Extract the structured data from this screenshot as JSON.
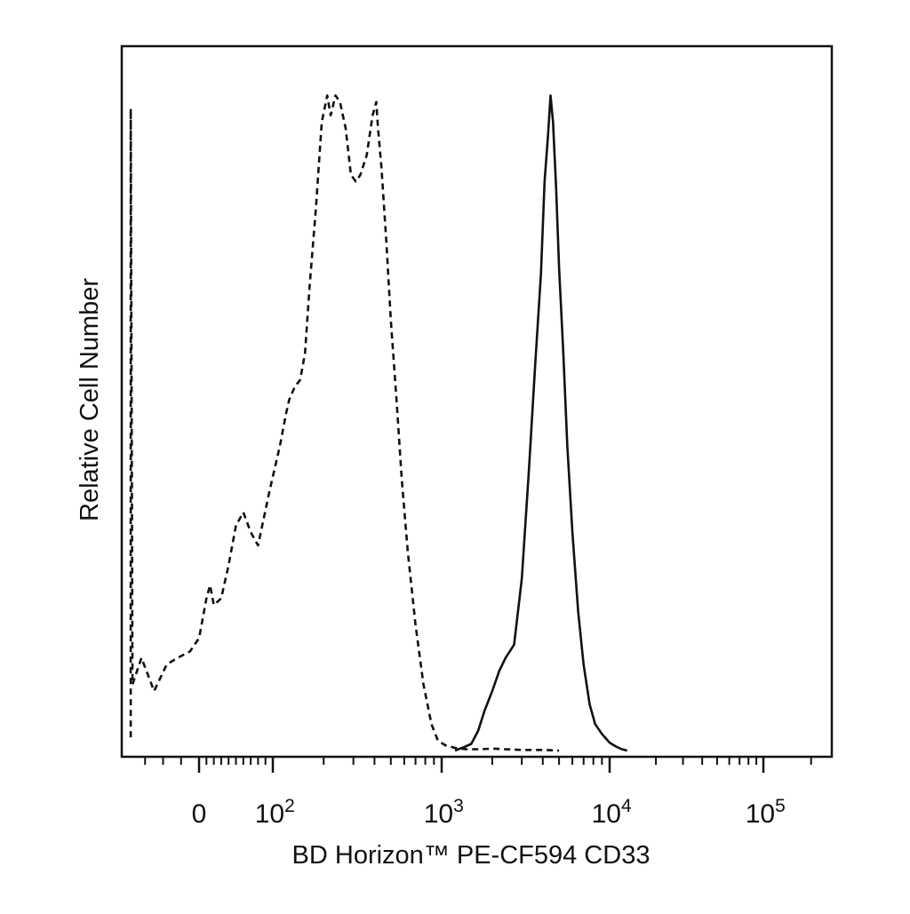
{
  "chart_data": {
    "type": "line",
    "title": "",
    "xlabel": "BD Horizon™ PE-CF594 CD33",
    "ylabel": "Relative Cell Number",
    "x_scale": "biexponential",
    "xlim": [
      -40,
      250000
    ],
    "ylim": [
      0,
      100
    ],
    "grid": false,
    "legend": "none",
    "x_ticks": [
      {
        "value": 0,
        "label": "0"
      },
      {
        "value": 100,
        "label": "10",
        "sup": "2"
      },
      {
        "value": 1000,
        "label": "10",
        "sup": "3"
      },
      {
        "value": 10000,
        "label": "10",
        "sup": "4"
      },
      {
        "value": 100000,
        "label": "10",
        "sup": "5"
      }
    ],
    "series": [
      {
        "style": "dashed",
        "color": "#111111",
        "x": [
          -38,
          -38,
          -37,
          -32,
          -25,
          -18,
          -12,
          -5,
          0,
          5,
          10,
          15,
          20,
          30,
          40,
          50,
          60,
          70,
          80,
          95,
          110,
          120,
          125,
          135,
          145,
          155,
          165,
          180,
          195,
          210,
          220,
          235,
          250,
          270,
          290,
          310,
          330,
          360,
          390,
          410,
          420,
          440,
          470,
          500,
          540,
          580,
          630,
          700,
          780,
          870,
          950,
          1050,
          1200,
          1400,
          1700,
          2000,
          2400,
          3000,
          4000,
          5000
        ],
        "y": [
          2,
          97,
          10,
          14,
          9,
          13,
          14,
          15,
          17,
          20,
          23,
          25,
          22,
          23,
          28,
          34,
          36,
          33,
          31,
          39,
          46,
          51,
          53,
          55,
          56,
          60,
          70,
          82,
          95,
          99,
          96,
          99,
          98,
          94,
          87,
          86,
          87,
          90,
          96,
          98,
          94,
          88,
          77,
          65,
          53,
          41,
          30,
          19,
          10,
          4,
          1.5,
          0.8,
          0.4,
          0.2,
          0.2,
          0.3,
          0.2,
          0.1,
          0.1,
          0
        ]
      },
      {
        "style": "solid",
        "color": "#111111",
        "x": [
          1200,
          1350,
          1500,
          1650,
          1800,
          2000,
          2200,
          2400,
          2700,
          3000,
          3300,
          3600,
          3900,
          4100,
          4300,
          4450,
          4600,
          4800,
          5000,
          5300,
          5600,
          6000,
          6500,
          7000,
          7600,
          8200,
          9000,
          10000,
          11000,
          12000,
          13000
        ],
        "y": [
          0,
          0.5,
          1,
          3,
          6,
          9,
          12,
          14,
          16,
          26,
          42,
          58,
          72,
          86,
          93,
          99,
          95,
          85,
          73,
          60,
          46,
          33,
          21,
          13,
          7,
          4,
          2.5,
          1.2,
          0.6,
          0.2,
          0
        ]
      }
    ]
  }
}
